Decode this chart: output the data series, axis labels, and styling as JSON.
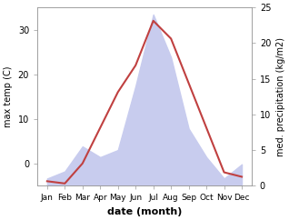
{
  "months": [
    "Jan",
    "Feb",
    "Mar",
    "Apr",
    "May",
    "Jun",
    "Jul",
    "Aug",
    "Sep",
    "Oct",
    "Nov",
    "Dec"
  ],
  "temperature": [
    -4,
    -4.5,
    0,
    8,
    16,
    22,
    32,
    28,
    18,
    8,
    -2,
    -3
  ],
  "precipitation": [
    1,
    2,
    5.5,
    4,
    5,
    14,
    24,
    18,
    8,
    4,
    1,
    3
  ],
  "temp_color": "#c04040",
  "precip_fill_color": "#c8ccee",
  "temp_ylim": [
    -5,
    35
  ],
  "precip_ylim": [
    0,
    25
  ],
  "temp_yticks": [
    0,
    10,
    20,
    30
  ],
  "precip_yticks": [
    0,
    5,
    10,
    15,
    20,
    25
  ],
  "ylabel_left": "max temp (C)",
  "ylabel_right": "med. precipitation (kg/m2)",
  "xlabel": "date (month)",
  "bg_color": "#ffffff",
  "spine_color": "#999999"
}
